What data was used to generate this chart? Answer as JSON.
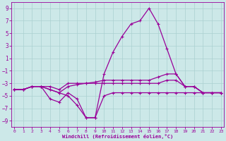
{
  "xlabel": "Windchill (Refroidissement éolien,°C)",
  "background_color": "#cce8e8",
  "line_color": "#990099",
  "grid_color": "#aad0d0",
  "xlim_min": -0.3,
  "xlim_max": 23.3,
  "ylim_min": -10.0,
  "ylim_max": 10.0,
  "yticks": [
    -9,
    -7,
    -5,
    -3,
    -1,
    1,
    3,
    5,
    7,
    9
  ],
  "xticks": [
    0,
    1,
    2,
    3,
    4,
    5,
    6,
    7,
    8,
    9,
    10,
    11,
    12,
    13,
    14,
    15,
    16,
    17,
    18,
    19,
    20,
    21,
    22,
    23
  ],
  "lines": [
    [
      -4.0,
      -4.0,
      -3.5,
      -3.5,
      -4.0,
      -4.5,
      -5.0,
      -6.5,
      -8.5,
      -8.5,
      -1.5,
      2.0,
      4.5,
      6.5,
      7.0,
      9.0,
      6.5,
      2.5,
      -1.5,
      -3.5,
      -3.5,
      -4.5,
      -4.5,
      -4.5
    ],
    [
      -4.0,
      -4.0,
      -3.5,
      -3.5,
      -4.0,
      -4.5,
      -3.5,
      -3.2,
      -3.0,
      -2.8,
      -2.5,
      -2.5,
      -2.5,
      -2.5,
      -2.5,
      -2.5,
      -2.0,
      -1.5,
      -1.5,
      -3.5,
      -3.5,
      -4.5,
      -4.5,
      -4.5
    ],
    [
      -4.0,
      -4.0,
      -3.5,
      -3.5,
      -3.5,
      -4.0,
      -3.0,
      -3.0,
      -3.0,
      -3.0,
      -3.0,
      -3.0,
      -3.0,
      -3.0,
      -3.0,
      -3.0,
      -3.0,
      -2.5,
      -2.5,
      -3.5,
      -3.5,
      -4.5,
      -4.5,
      -4.5
    ],
    [
      -4.0,
      -4.0,
      -3.5,
      -3.5,
      -5.5,
      -6.0,
      -4.5,
      -5.5,
      -8.5,
      -8.5,
      -5.0,
      -4.5,
      -4.5,
      -4.5,
      -4.5,
      -4.5,
      -4.5,
      -4.5,
      -4.5,
      -4.5,
      -4.5,
      -4.5,
      -4.5,
      -4.5
    ]
  ]
}
